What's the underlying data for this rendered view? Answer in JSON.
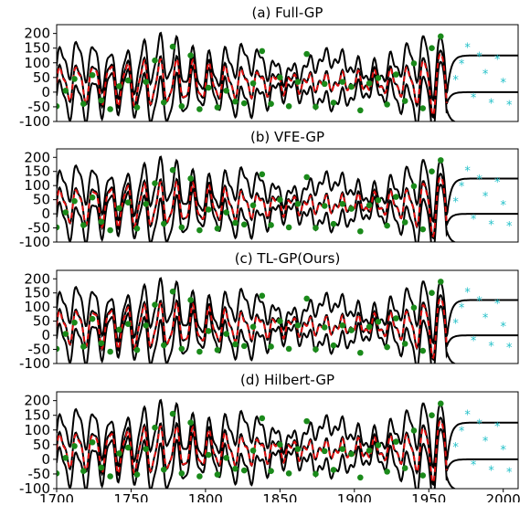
{
  "figure": {
    "x_ticks": [
      1700,
      1750,
      1800,
      1850,
      1900,
      1950,
      2000
    ],
    "y_ticks": [
      -100,
      -50,
      0,
      50,
      100,
      150,
      200
    ],
    "colors": {
      "mean": "#000000",
      "bounds": "#000000",
      "prediction": "#e01010",
      "train_points": "#1a8a1a",
      "test_points": "#22c0c8"
    }
  },
  "chart_data": [
    {
      "type": "line",
      "title": "(a) Full-GP",
      "xlim": [
        1700,
        2010
      ],
      "ylim": [
        -100,
        230
      ],
      "grid": false,
      "train_x": [
        1700,
        1706,
        1712,
        1718,
        1724,
        1730,
        1736,
        1742,
        1748,
        1754,
        1760,
        1766,
        1772,
        1778,
        1784,
        1790,
        1796,
        1802,
        1808,
        1814,
        1820,
        1826,
        1832,
        1838,
        1844,
        1850,
        1856,
        1862,
        1868,
        1874,
        1880,
        1886,
        1892,
        1898,
        1904,
        1910,
        1916,
        1922,
        1928,
        1934,
        1940,
        1946,
        1952,
        1958
      ],
      "train_y": [
        -48,
        5,
        45,
        -40,
        58,
        -28,
        -58,
        20,
        40,
        -52,
        35,
        108,
        -35,
        155,
        -48,
        125,
        -58,
        15,
        -52,
        5,
        -32,
        -38,
        30,
        140,
        -40,
        50,
        -48,
        35,
        130,
        -50,
        28,
        -36,
        35,
        18,
        -62,
        30,
        48,
        -42,
        60,
        -30,
        98,
        -55,
        150,
        190
      ],
      "test_x": [
        1968,
        1972,
        1976,
        1980,
        1984,
        1988,
        1992,
        1996,
        2000,
        2004
      ],
      "test_y": [
        40,
        95,
        150,
        -20,
        120,
        60,
        -40,
        110,
        30,
        -45
      ]
    },
    {
      "type": "line",
      "title": "(b) VFE-GP",
      "xlim": [
        1700,
        2010
      ],
      "ylim": [
        -100,
        230
      ],
      "grid": false,
      "train_x": [
        1700,
        1706,
        1712,
        1718,
        1724,
        1730,
        1736,
        1742,
        1748,
        1754,
        1760,
        1766,
        1772,
        1778,
        1784,
        1790,
        1796,
        1802,
        1808,
        1814,
        1820,
        1826,
        1832,
        1838,
        1844,
        1850,
        1856,
        1862,
        1868,
        1874,
        1880,
        1886,
        1892,
        1898,
        1904,
        1910,
        1916,
        1922,
        1928,
        1934,
        1940,
        1946,
        1952,
        1958
      ],
      "train_y": [
        -48,
        5,
        45,
        -40,
        58,
        -28,
        -58,
        20,
        40,
        -52,
        35,
        108,
        -35,
        155,
        -48,
        125,
        -58,
        15,
        -52,
        5,
        -32,
        -38,
        30,
        140,
        -40,
        50,
        -48,
        35,
        130,
        -50,
        28,
        -36,
        35,
        18,
        -62,
        30,
        48,
        -42,
        60,
        -30,
        98,
        -55,
        150,
        190
      ],
      "test_x": [
        1968,
        1972,
        1976,
        1980,
        1984,
        1988,
        1992,
        1996,
        2000,
        2004
      ],
      "test_y": [
        40,
        95,
        150,
        -20,
        120,
        60,
        -40,
        110,
        30,
        -45
      ]
    },
    {
      "type": "line",
      "title": "(c) TL-GP(Ours)",
      "xlim": [
        1700,
        2010
      ],
      "ylim": [
        -100,
        230
      ],
      "grid": false,
      "train_x": [
        1700,
        1706,
        1712,
        1718,
        1724,
        1730,
        1736,
        1742,
        1748,
        1754,
        1760,
        1766,
        1772,
        1778,
        1784,
        1790,
        1796,
        1802,
        1808,
        1814,
        1820,
        1826,
        1832,
        1838,
        1844,
        1850,
        1856,
        1862,
        1868,
        1874,
        1880,
        1886,
        1892,
        1898,
        1904,
        1910,
        1916,
        1922,
        1928,
        1934,
        1940,
        1946,
        1952,
        1958
      ],
      "train_y": [
        -48,
        5,
        45,
        -40,
        58,
        -28,
        -58,
        20,
        40,
        -52,
        35,
        108,
        -35,
        155,
        -48,
        125,
        -58,
        15,
        -52,
        5,
        -32,
        -38,
        30,
        140,
        -40,
        50,
        -48,
        35,
        130,
        -50,
        28,
        -36,
        35,
        18,
        -62,
        30,
        48,
        -42,
        60,
        -30,
        98,
        -55,
        150,
        190
      ],
      "test_x": [
        1968,
        1972,
        1976,
        1980,
        1984,
        1988,
        1992,
        1996,
        2000,
        2004
      ],
      "test_y": [
        40,
        95,
        150,
        -20,
        120,
        60,
        -40,
        110,
        30,
        -45
      ]
    },
    {
      "type": "line",
      "title": "(d) Hilbert-GP",
      "xlim": [
        1700,
        2010
      ],
      "ylim": [
        -100,
        230
      ],
      "grid": false,
      "train_x": [
        1700,
        1706,
        1712,
        1718,
        1724,
        1730,
        1736,
        1742,
        1748,
        1754,
        1760,
        1766,
        1772,
        1778,
        1784,
        1790,
        1796,
        1802,
        1808,
        1814,
        1820,
        1826,
        1832,
        1838,
        1844,
        1850,
        1856,
        1862,
        1868,
        1874,
        1880,
        1886,
        1892,
        1898,
        1904,
        1910,
        1916,
        1922,
        1928,
        1934,
        1940,
        1946,
        1952,
        1958
      ],
      "train_y": [
        -48,
        5,
        45,
        -40,
        58,
        -28,
        -58,
        20,
        40,
        -52,
        35,
        108,
        -35,
        155,
        -48,
        125,
        -58,
        15,
        -52,
        5,
        -32,
        -38,
        30,
        140,
        -40,
        50,
        -48,
        35,
        130,
        -50,
        28,
        -36,
        35,
        18,
        -62,
        30,
        48,
        -42,
        60,
        -30,
        98,
        -55,
        150,
        190
      ],
      "test_x": [
        1968,
        1972,
        1976,
        1980,
        1984,
        1988,
        1992,
        1996,
        2000,
        2004
      ],
      "test_y": [
        40,
        95,
        150,
        -20,
        120,
        60,
        -40,
        110,
        30,
        -45
      ]
    }
  ]
}
